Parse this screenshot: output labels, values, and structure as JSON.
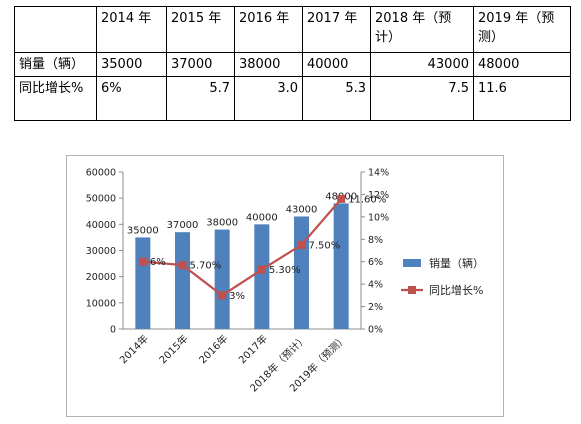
{
  "table": {
    "header": [
      "",
      "2014 年",
      "2015 年",
      "2016 年",
      "2017 年",
      "2018 年（预计）",
      "2019 年（预测）"
    ],
    "rows": [
      {
        "label": "销量（辆）",
        "cells": [
          "35000",
          "37000",
          "38000",
          "40000",
          "43000",
          "48000"
        ]
      },
      {
        "label": "同比增长%",
        "cells": [
          "6%",
          "5.7",
          "3.0",
          "5.3",
          "7.5",
          "11.6"
        ]
      }
    ]
  },
  "chart_data": {
    "type": "bar",
    "categories": [
      "2014年",
      "2015年",
      "2016年",
      "2017年",
      "2018年（预计）",
      "2019年（预测）"
    ],
    "series": [
      {
        "name": "销量（辆）",
        "type": "bar",
        "axis": "left",
        "color": "#4f81bd",
        "values": [
          35000,
          37000,
          38000,
          40000,
          43000,
          48000
        ],
        "labels": [
          "35000",
          "37000",
          "38000",
          "40000",
          "43000",
          "48000"
        ]
      },
      {
        "name": "同比增长%",
        "type": "line",
        "axis": "right",
        "color": "#c0504d",
        "values": [
          6,
          5.7,
          3,
          5.3,
          7.5,
          11.6
        ],
        "labels": [
          "6%",
          "5.70%",
          "3%",
          "5.30%",
          "7.50%",
          "11.60%"
        ]
      }
    ],
    "ylim": [
      0,
      60000
    ],
    "y2lim": [
      0,
      14
    ],
    "y_ticks": [
      "0",
      "10000",
      "20000",
      "30000",
      "40000",
      "50000",
      "60000"
    ],
    "y2_ticks": [
      "0%",
      "2%",
      "4%",
      "6%",
      "8%",
      "10%",
      "12%",
      "14%"
    ],
    "legend_position": "right"
  }
}
